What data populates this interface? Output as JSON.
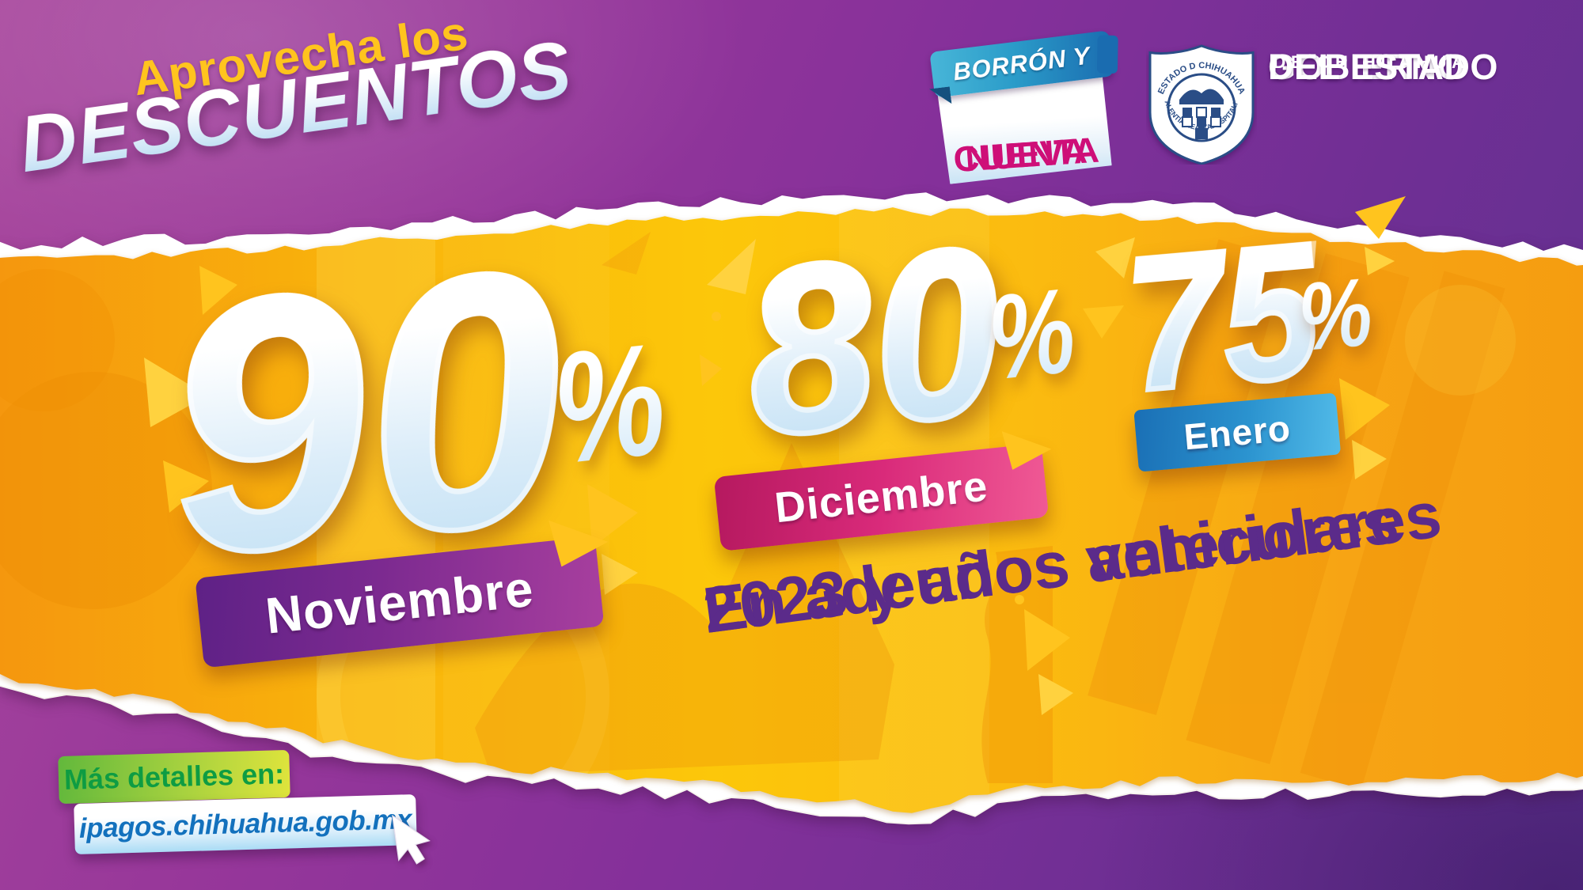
{
  "header": {
    "tagline": "Aprovecha los",
    "title": "DESCUENTOS"
  },
  "promo_badge": {
    "ribbon": "BORRÓN Y",
    "line1": "CUENTA",
    "line2": "NUEVA"
  },
  "government": {
    "line1": "GOBIERNO",
    "line2": "DEL ESTADO",
    "line3": "DE CHIHUAHUA",
    "shield_top": "ESTADO D CHIHUAHUA",
    "shield_left": "VALENTÍA",
    "shield_bottom": "LEALTAD",
    "shield_right": "HOSPITALIDAD"
  },
  "discounts": [
    {
      "percent": "90",
      "sign": "%",
      "month": "Noviembre"
    },
    {
      "percent": "80",
      "sign": "%",
      "month": "Diciembre"
    },
    {
      "percent": "75",
      "sign": "%",
      "month": "Enero"
    }
  ],
  "slogan": {
    "line1": "En adeudos vehiculares",
    "line2": "2023 y años anteriores"
  },
  "footer": {
    "details_label": "Más detalles en:",
    "url": "ipagos.chihuahua.gob.mx"
  },
  "colors": {
    "background_purple_left": "#a8479d",
    "background_purple_right": "#5e3190",
    "paper_orange": "#f9b70c",
    "accent_yellow": "#ffc41e",
    "number_gradient_top": "#ffffff",
    "number_gradient_bottom": "#bfdff4",
    "banner_noviembre": "#a83f9e",
    "banner_diciembre": "#d92a7a",
    "banner_enero": "#2b93cf",
    "slogan_purple": "#5b2b8a",
    "details_green": "#0e9c43",
    "url_blue": "#1371bd",
    "badge_magenta": "#ce0f78",
    "badge_blue": "#2b9cc9",
    "shield_navy": "#2a4d86"
  }
}
